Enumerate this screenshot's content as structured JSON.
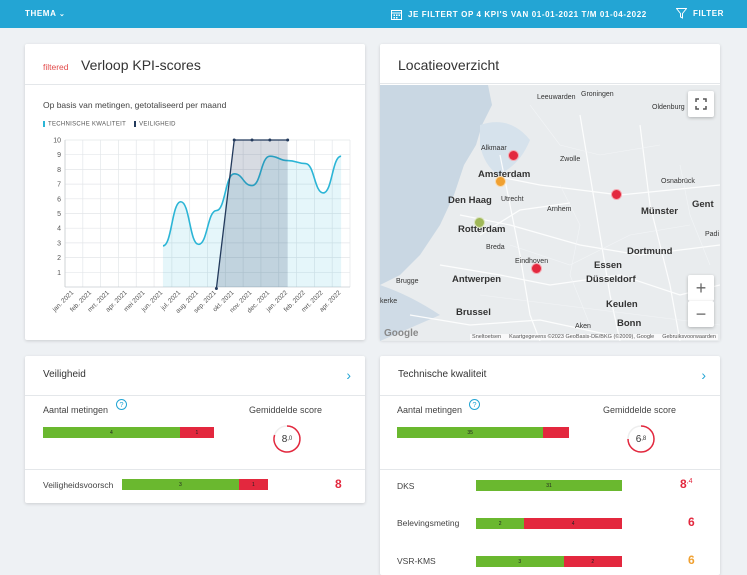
{
  "topbar": {
    "thema_label": "THEMA",
    "filter_info": "JE FILTERT OP 4 KPI'S VAN 01-01-2021 T/M 01-04-2022",
    "filter_label": "FILTER"
  },
  "kpi_card": {
    "tag": "filtered",
    "title": "Verloop KPI-scores",
    "subtitle": "Op basis van metingen, getotaliseerd per maand",
    "legend": [
      "TECHNISCHE KWALITEIT",
      "VEILIGHEID"
    ]
  },
  "chart_data": {
    "type": "line",
    "categories": [
      "jan. 2021",
      "feb. 2021",
      "mrt. 2021",
      "apr. 2021",
      "mei 2021",
      "jun. 2021",
      "jul. 2021",
      "aug. 2021",
      "sep. 2021",
      "okt. 2021",
      "nov. 2021",
      "dec. 2021",
      "jan. 2022",
      "feb. 2022",
      "mrt. 2022",
      "apr. 2022"
    ],
    "ylim": [
      0,
      10
    ],
    "yticks": [
      1,
      2,
      3,
      4,
      5,
      6,
      7,
      8,
      9,
      10
    ],
    "grid": true,
    "series": [
      {
        "name": "TECHNISCHE KWALITEIT",
        "color": "#2bb5d6",
        "values": [
          null,
          null,
          null,
          null,
          null,
          2.8,
          5.8,
          2.9,
          5.2,
          7.7,
          6.9,
          8.9,
          8.6,
          8.4,
          6.4,
          8.9
        ]
      },
      {
        "name": "VEILIGHEID",
        "color": "#233a5c",
        "values": [
          null,
          null,
          null,
          null,
          null,
          null,
          null,
          null,
          -0.1,
          10,
          10,
          10,
          10,
          null,
          null,
          null
        ]
      }
    ]
  },
  "map_card": {
    "title": "Locatieoverzicht",
    "zoom_in": "+",
    "zoom_out": "−",
    "attribution": [
      "Sneltoetsen",
      "Kaartgegevens ©2023 GeoBasis-DE/BKG (©2009), Google",
      "Gebruiksvoorwaarden"
    ],
    "logo": "Google",
    "cities_major": [
      "Amsterdam",
      "Den Haag",
      "Rotterdam",
      "Antwerpen",
      "Brussel",
      "Münster",
      "Dortmund",
      "Düsseldorf",
      "Essen",
      "Keulen",
      "Bonn",
      "Bielefe",
      "Gent"
    ],
    "cities_minor": [
      "Leeuwarden",
      "Groningen",
      "Oldenburg",
      "Alkmaar",
      "Zwolle",
      "Utrecht",
      "Arnhem",
      "Osnabrück",
      "Breda",
      "Eindhoven",
      "Brugge",
      "Aken",
      "Padi",
      "kerke"
    ],
    "markers": [
      {
        "color": "#e3283e"
      },
      {
        "color": "#f0a030"
      },
      {
        "color": "#e3283e"
      },
      {
        "color": "#a0b858"
      },
      {
        "color": "#e3283e"
      }
    ]
  },
  "veiligheid": {
    "title": "Veiligheid",
    "aantal_label": "Aantal metingen",
    "gem_label": "Gemiddelde score",
    "bar_green": "4",
    "bar_red": "1",
    "bar_green_frac": 0.8,
    "score_int": "8",
    "score_dec": ",0",
    "score_value": 8.0,
    "rows": [
      {
        "label": "Veiligheidsvoorsch",
        "green": "3",
        "red": "1",
        "green_frac": 0.75,
        "score": "8",
        "score_color": "#e3283e"
      }
    ]
  },
  "technische": {
    "title": "Technische kwaliteit",
    "aantal_label": "Aantal metingen",
    "gem_label": "Gemiddelde score",
    "bar_green": "35",
    "bar_red": "",
    "bar_green_frac": 0.85,
    "score_int": "6",
    "score_dec": ",8",
    "score_value": 6.8,
    "rows": [
      {
        "label": "DKS",
        "green": "31",
        "red": "",
        "green_frac": 1.0,
        "score": "8",
        "score_dec": ",4",
        "score_color": "#e3283e"
      },
      {
        "label": "Belevingsmeting",
        "green": "2",
        "red": "4",
        "green_frac": 0.33,
        "score": "6",
        "score_color": "#e3283e"
      },
      {
        "label": "VSR-KMS",
        "green": "3",
        "red": "2",
        "green_frac": 0.6,
        "score": "6",
        "score_color": "#f0a030"
      }
    ]
  }
}
